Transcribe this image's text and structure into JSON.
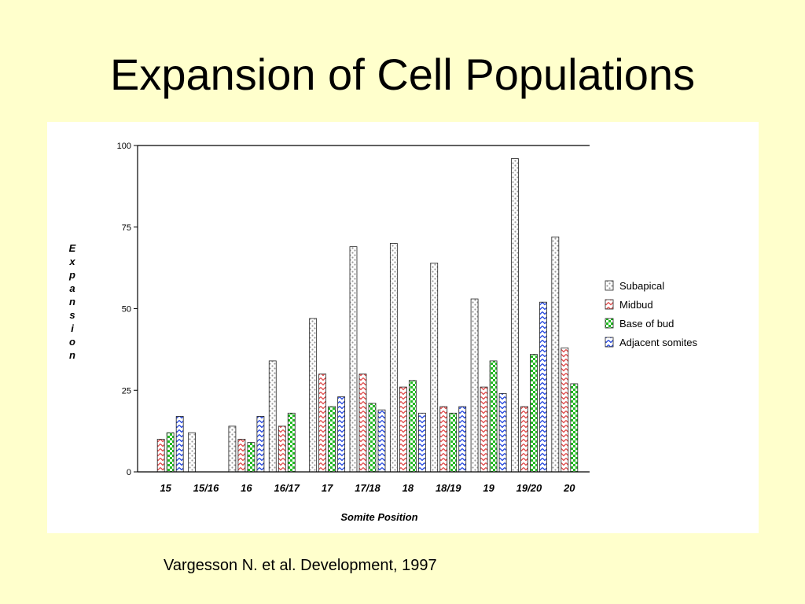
{
  "slide": {
    "title": "Expansion of Cell Populations",
    "citation": "Vargesson N. et al. Development, 1997"
  },
  "chart_data": {
    "type": "bar",
    "xlabel": "Somite Position",
    "ylabel": "Expansion",
    "ylim": [
      0,
      100
    ],
    "yticks": [
      0,
      25,
      50,
      75,
      100
    ],
    "grid": false,
    "legend_position": "right",
    "categories": [
      "15",
      "15/16",
      "16",
      "16/17",
      "17",
      "17/18",
      "18",
      "18/19",
      "19",
      "19/20",
      "20"
    ],
    "series": [
      {
        "name": "Subapical",
        "color": "#9a9a9a",
        "pattern": "dotted",
        "values": [
          null,
          12,
          14,
          34,
          47,
          69,
          70,
          64,
          53,
          96,
          72
        ]
      },
      {
        "name": "Midbud",
        "color": "#e04848",
        "pattern": "zigzag",
        "values": [
          10,
          null,
          10,
          14,
          30,
          30,
          26,
          20,
          26,
          20,
          38
        ]
      },
      {
        "name": "Base of bud",
        "color": "#22bb22",
        "pattern": "checker",
        "values": [
          12,
          null,
          9,
          18,
          20,
          21,
          28,
          18,
          34,
          36,
          27
        ]
      },
      {
        "name": "Adjacent somites",
        "color": "#2244dd",
        "pattern": "zigzag",
        "values": [
          17,
          null,
          17,
          null,
          23,
          19,
          18,
          20,
          24,
          52,
          null
        ]
      }
    ]
  }
}
